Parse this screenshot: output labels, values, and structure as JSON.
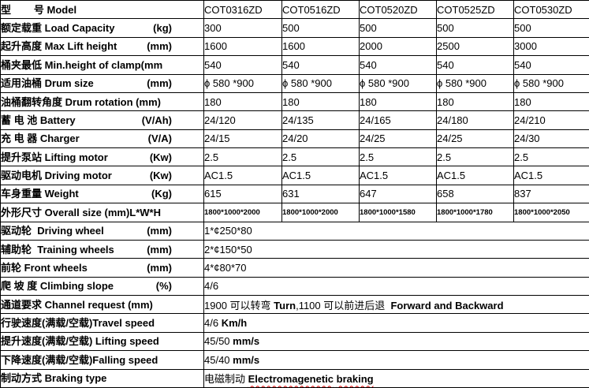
{
  "colors": {
    "border": "#000000",
    "text": "#000000",
    "spellcheck_squiggle": "#dd0000",
    "background": "#ffffff"
  },
  "table": {
    "rows": [
      {
        "zh": "型        号 ",
        "en": "Model",
        "unit": "",
        "values": [
          "COT0316ZD",
          "COT0516ZD",
          "COT0520ZD",
          "COT0525ZD",
          "COT0530ZD"
        ]
      },
      {
        "zh": "额定载重 ",
        "en": "Load Capacity",
        "unit": "(kg)",
        "values": [
          "300",
          "500",
          "500",
          "500",
          "500"
        ]
      },
      {
        "zh": "起升高度 ",
        "en": "Max Lift height",
        "unit": "(mm)",
        "values": [
          "1600",
          "1600",
          "2000",
          "2500",
          "3000"
        ]
      },
      {
        "zh": "桶夹最低 ",
        "en": "Min.height of clamp(mm",
        "unit": "",
        "values": [
          "540",
          "540",
          "540",
          "540",
          "540"
        ]
      },
      {
        "zh": "适用油桶 ",
        "en": "Drum size",
        "unit": "(mm)",
        "values": [
          "ϕ 580 *900",
          "ϕ 580 *900",
          "ϕ 580 *900",
          "ϕ 580 *900",
          "ϕ 580 *900"
        ]
      },
      {
        "zh": "油桶翻转角度 ",
        "en": "Drum rotation (mm)",
        "unit": "",
        "values": [
          "180",
          "180",
          "180",
          "180",
          "180"
        ]
      },
      {
        "zh": "蓄 电 池 ",
        "en": "Battery",
        "unit": "(V/Ah)",
        "values": [
          "24/120",
          "24/135",
          "24/165",
          "24/180",
          "24/210"
        ]
      },
      {
        "zh": "充 电 器 ",
        "en": "Charger",
        "unit": "(V/A)",
        "values": [
          "24/15",
          "24/20",
          "24/25",
          "24/25",
          "24/30"
        ]
      },
      {
        "zh": "提升泵站 ",
        "en": "Lifting motor",
        "unit": "(Kw)",
        "values": [
          "2.5",
          "2.5",
          "2.5",
          "2.5",
          "2.5"
        ]
      },
      {
        "zh": "驱动电机 ",
        "en": "Driving motor",
        "unit": "(Kw)",
        "values": [
          "AC1.5",
          "AC1.5",
          "AC1.5",
          "AC1.5",
          "AC1.5"
        ]
      },
      {
        "zh": "车身重量 ",
        "en": "Weight",
        "unit": "(Kg)",
        "values": [
          "615",
          "631",
          "647",
          "658",
          "837"
        ]
      },
      {
        "zh": "外形尺寸 ",
        "en": "Overall size (mm)L*W*H",
        "unit": "",
        "small": true,
        "values": [
          "1800*1000*2000",
          "1800*1000*2000",
          "1800*1000*1580",
          "1800*1000*1780",
          "1800*1000*2050"
        ]
      },
      {
        "zh": "驱动轮  ",
        "en": "Driving wheel",
        "unit": "(mm)",
        "parts": [
          {
            "t": "1*¢250*80"
          }
        ]
      },
      {
        "zh": "辅助轮  ",
        "en": "Training wheels",
        "unit": "(mm)",
        "parts": [
          {
            "t": "2*¢150*50"
          }
        ]
      },
      {
        "zh": "前轮 ",
        "en": "Front wheels",
        "unit": "(mm)",
        "parts": [
          {
            "t": "4*¢80*70"
          }
        ]
      },
      {
        "zh": "爬 坡 度 ",
        "en": "Climbing slope",
        "unit": "(%)",
        "parts": [
          {
            "t": "4/6"
          }
        ]
      },
      {
        "zh": "通道要求 ",
        "en": "Channel request (mm)",
        "unit": "",
        "parts": [
          {
            "t": "1900 可以转弯 "
          },
          {
            "t": "Turn",
            "b": true
          },
          {
            "t": ",1100 可以前进后退 "
          },
          {
            "t": " Forward and Backward",
            "b": true
          }
        ]
      },
      {
        "zh": "行驶速度(满载/空载)",
        "en": "Travel speed",
        "unit": "",
        "parts": [
          {
            "t": "4/6 "
          },
          {
            "t": "Km/h",
            "b": true
          }
        ]
      },
      {
        "zh": "提升速度(满载/空载) ",
        "en": "Lifting speed",
        "unit": "",
        "parts": [
          {
            "t": "45/50 "
          },
          {
            "t": "mm/s",
            "b": true
          }
        ]
      },
      {
        "zh": "下降速度(满载/空载)",
        "en": "Falling speed",
        "unit": "",
        "parts": [
          {
            "t": "45/40 "
          },
          {
            "t": "mm/s",
            "b": true
          }
        ]
      },
      {
        "zh": "制动方式 ",
        "en": "Braking type",
        "unit": "",
        "parts": [
          {
            "t": "电磁制动 "
          },
          {
            "t": "Electromagenetic",
            "b": true,
            "sq": true
          },
          {
            "t": " ",
            "b": true
          },
          {
            "t": "braking",
            "b": true,
            "sq": true
          }
        ]
      }
    ]
  }
}
